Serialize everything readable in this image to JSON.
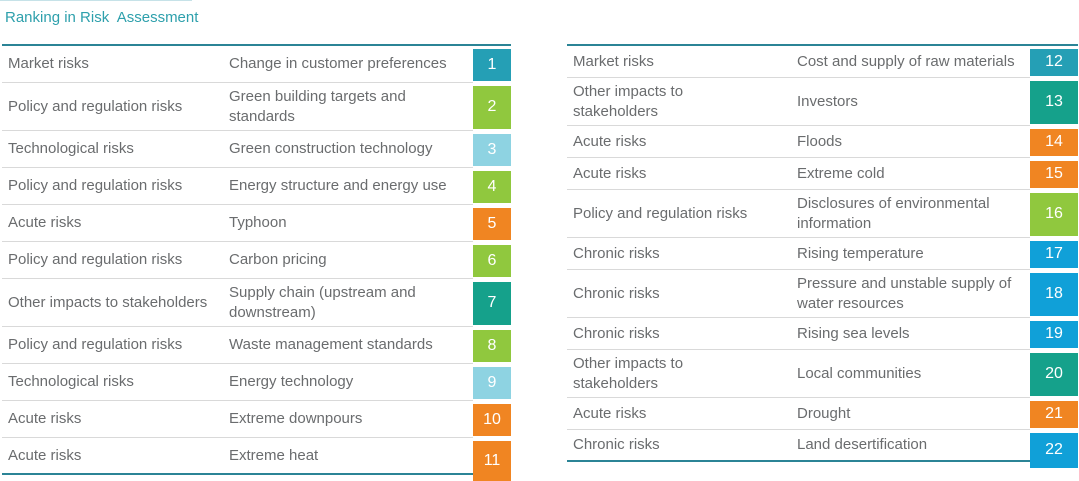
{
  "title": "Ranking in Risk  Assessment",
  "style": {
    "accent_border": "#2b8496",
    "row_divider": "#d9d9d9",
    "text_color": "#6a6c6e",
    "title_color": "#2ea0ac",
    "badge_text_color": "#ffffff"
  },
  "categories": {
    "market": {
      "label": "Market risks",
      "color": "#259fb5"
    },
    "policy": {
      "label": "Policy and regulation risks",
      "color": "#90c83e"
    },
    "tech": {
      "label": "Technological risks",
      "color": "#8ed3e2"
    },
    "acute": {
      "label": "Acute risks",
      "color": "#f08522"
    },
    "stakeholder": {
      "label": "Other impacts to stakeholders",
      "color": "#15a18b"
    },
    "chronic": {
      "label": "Chronic risks",
      "color": "#10a0d8"
    }
  },
  "tables": [
    {
      "name": "left",
      "rows": [
        {
          "category": "market",
          "risk": "Change in customer preferences",
          "rank": "1"
        },
        {
          "category": "policy",
          "risk": "Green building targets and standards",
          "rank": "2"
        },
        {
          "category": "tech",
          "risk": "Green construction technology",
          "rank": "3"
        },
        {
          "category": "policy",
          "risk": "Energy structure and energy use",
          "rank": "4"
        },
        {
          "category": "acute",
          "risk": "Typhoon",
          "rank": "5"
        },
        {
          "category": "policy",
          "risk": "Carbon pricing",
          "rank": "6"
        },
        {
          "category": "stakeholder",
          "risk": "Supply chain (upstream and downstream)",
          "rank": "7"
        },
        {
          "category": "policy",
          "risk": "Waste management standards",
          "rank": "8"
        },
        {
          "category": "tech",
          "risk": "Energy technology",
          "rank": "9"
        },
        {
          "category": "acute",
          "risk": "Extreme downpours",
          "rank": "10"
        },
        {
          "category": "acute",
          "risk": "Extreme heat",
          "rank": "11"
        }
      ]
    },
    {
      "name": "right",
      "rows": [
        {
          "category": "market",
          "risk": "Cost and supply of raw materials",
          "rank": "12"
        },
        {
          "category": "stakeholder",
          "risk": "Investors",
          "rank": "13"
        },
        {
          "category": "acute",
          "risk": "Floods",
          "rank": "14"
        },
        {
          "category": "acute",
          "risk": "Extreme cold",
          "rank": "15"
        },
        {
          "category": "policy",
          "risk": "Disclosures of environmental information",
          "rank": "16"
        },
        {
          "category": "chronic",
          "risk": "Rising temperature",
          "rank": "17"
        },
        {
          "category": "chronic",
          "risk": "Pressure and unstable supply of water resources",
          "rank": "18"
        },
        {
          "category": "chronic",
          "risk": "Rising sea levels",
          "rank": "19"
        },
        {
          "category": "stakeholder",
          "risk": "Local communities",
          "rank": "20"
        },
        {
          "category": "acute",
          "risk": "Drought",
          "rank": "21"
        },
        {
          "category": "chronic",
          "risk": "Land desertification",
          "rank": "22"
        }
      ]
    }
  ]
}
